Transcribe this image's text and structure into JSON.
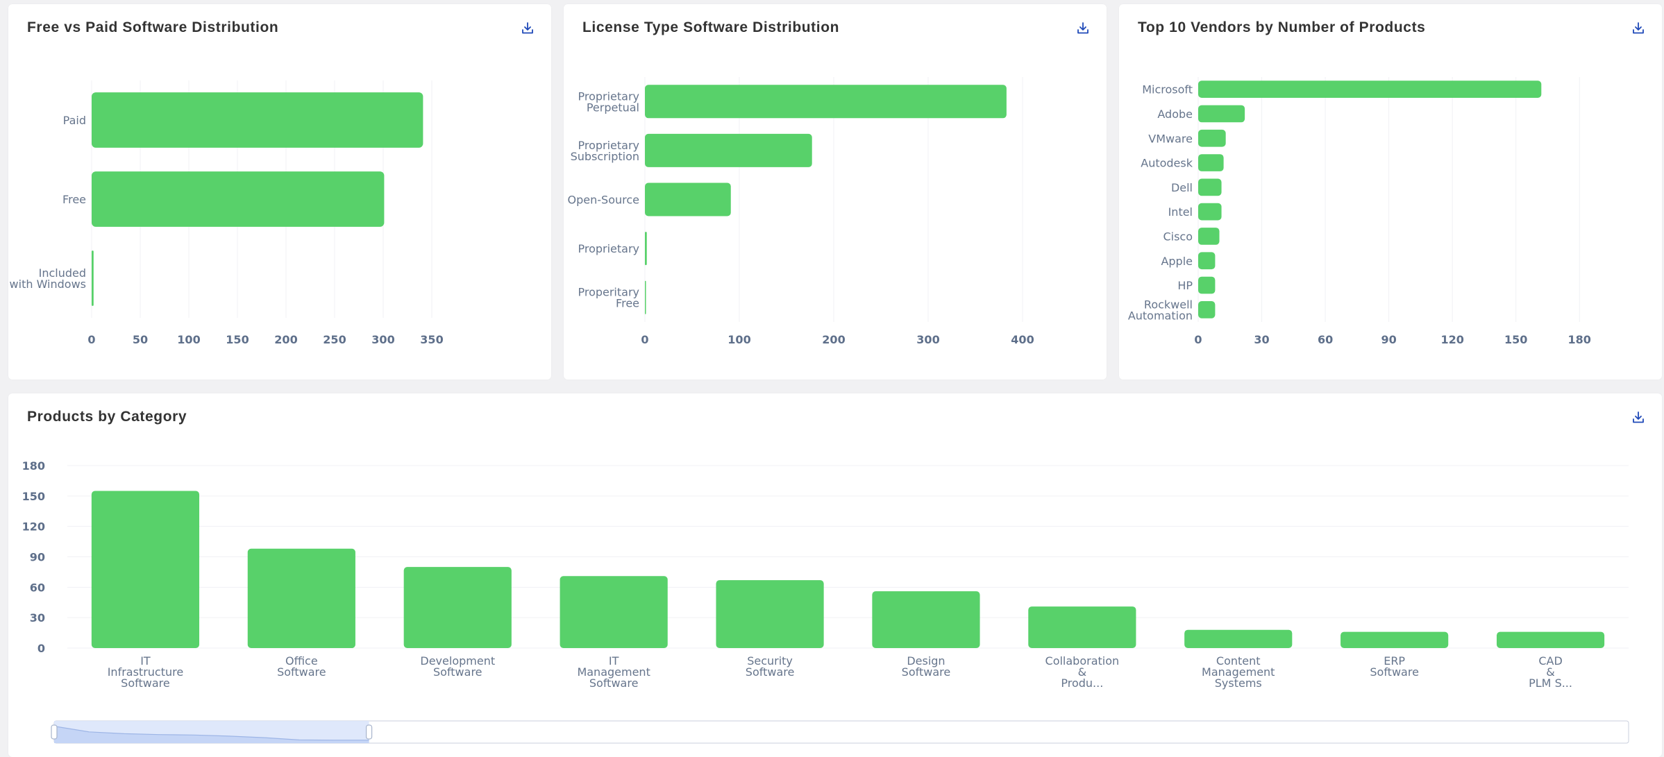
{
  "colors": {
    "bar": "#58d16a",
    "download_icon": "#1f49b8",
    "slider_fill": "#dbe6fb",
    "slider_border": "#c9cfdc"
  },
  "icons": {
    "download": "download-icon"
  },
  "chart_data": [
    {
      "type": "bar",
      "orientation": "horizontal",
      "title": "Free vs Paid Software Distribution",
      "categories": [
        "Paid",
        "Free",
        "Included\nwith Windows"
      ],
      "values": [
        341,
        301,
        2
      ],
      "xlim": [
        0,
        400
      ],
      "ticks": [
        0,
        50,
        100,
        150,
        200,
        250,
        300,
        350
      ],
      "grid": true
    },
    {
      "type": "bar",
      "orientation": "horizontal",
      "title": "License Type Software Distribution",
      "categories": [
        "Proprietary\nPerpetual",
        "Proprietary\nSubscription",
        "Open-Source",
        "Proprietary",
        "Properitary\nFree"
      ],
      "values": [
        383,
        177,
        91,
        2,
        1
      ],
      "xlim": [
        0,
        450
      ],
      "ticks": [
        0,
        100,
        200,
        300,
        400
      ],
      "grid": true
    },
    {
      "type": "bar",
      "orientation": "horizontal",
      "title": "Top 10 Vendors by Number of Products",
      "categories": [
        "Microsoft",
        "Adobe",
        "VMware",
        "Autodesk",
        "Dell",
        "Intel",
        "Cisco",
        "Apple",
        "HP",
        "Rockwell\nAutomation"
      ],
      "values": [
        162,
        22,
        13,
        12,
        11,
        11,
        10,
        8,
        8,
        8
      ],
      "xlim": [
        0,
        195
      ],
      "ticks": [
        0,
        30,
        60,
        90,
        120,
        150,
        180
      ],
      "grid": true
    },
    {
      "type": "bar",
      "orientation": "vertical",
      "title": "Products by Category",
      "categories": [
        "IT\nInfrastructure\nSoftware",
        "Office\nSoftware",
        "Development\nSoftware",
        "IT\nManagement\nSoftware",
        "Security\nSoftware",
        "Design\nSoftware",
        "Collaboration\n&\nProdu...",
        "Content\nManagement\nSystems",
        "ERP\nSoftware",
        "CAD\n&\nPLM S..."
      ],
      "values": [
        155,
        98,
        80,
        71,
        67,
        56,
        41,
        18,
        16,
        16
      ],
      "ylim": [
        0,
        180
      ],
      "ticks": [
        0,
        30,
        60,
        90,
        120,
        150,
        180
      ],
      "grid": true,
      "zoom_slider": {
        "start": 0,
        "end": 0.2
      }
    }
  ]
}
